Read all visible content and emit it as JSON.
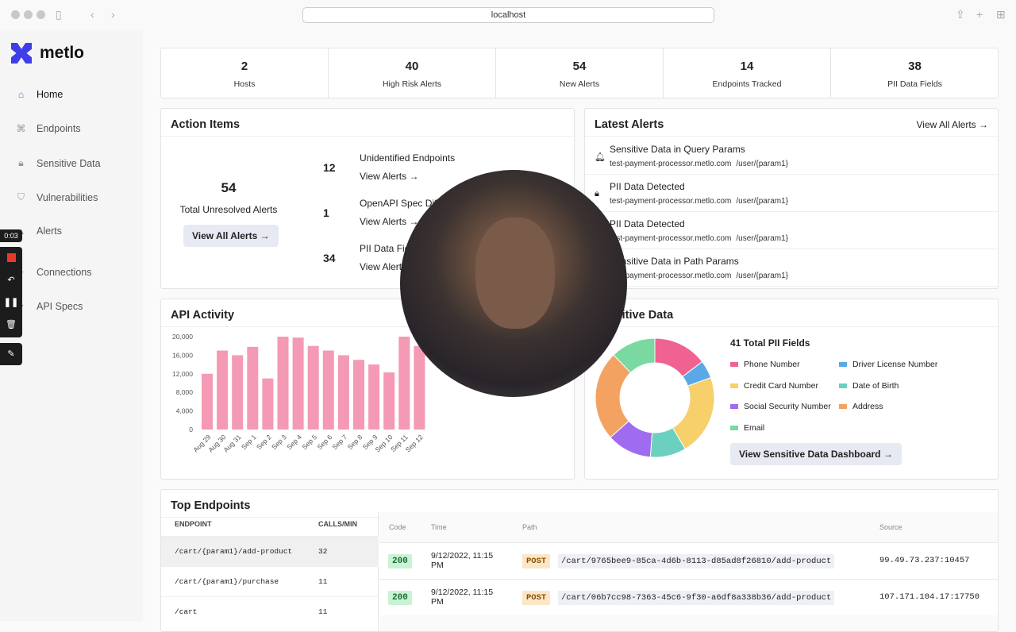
{
  "browser": {
    "url": "localhost"
  },
  "sidebar": {
    "brand": "metlo",
    "items": [
      {
        "label": "Home"
      },
      {
        "label": "Endpoints"
      },
      {
        "label": "Sensitive Data"
      },
      {
        "label": "Vulnerabilities"
      },
      {
        "label": "Alerts"
      },
      {
        "label": "Connections"
      },
      {
        "label": "API Specs"
      }
    ]
  },
  "recorder": {
    "timer": "0:03"
  },
  "stats": [
    {
      "value": "2",
      "label": "Hosts"
    },
    {
      "value": "40",
      "label": "High Risk Alerts"
    },
    {
      "value": "54",
      "label": "New Alerts"
    },
    {
      "value": "14",
      "label": "Endpoints Tracked"
    },
    {
      "value": "38",
      "label": "PII Data Fields"
    }
  ],
  "action_items": {
    "title": "Action Items",
    "total": "54",
    "total_label": "Total Unresolved Alerts",
    "view_all": "View All Alerts →",
    "items": [
      {
        "count": "12",
        "title": "Unidentified Endpoints",
        "link": "View Alerts →"
      },
      {
        "count": "1",
        "title": "OpenAPI Spec Diff",
        "link": "View Alerts →"
      },
      {
        "count": "34",
        "title": "PII Data Fie",
        "link": "View Alerts"
      }
    ]
  },
  "latest_alerts": {
    "title": "Latest Alerts",
    "view_all": "View All Alerts →",
    "items": [
      {
        "title": "Sensitive Data in Query Params",
        "host": "test-payment-processor.metlo.com",
        "path": "/user/{param1}",
        "icon": "bell-icon"
      },
      {
        "title": "PII Data Detected",
        "host": "test-payment-processor.metlo.com",
        "path": "/user/{param1}",
        "icon": "lock-icon"
      },
      {
        "title": "PII Data Detected",
        "host": "test-payment-processor.metlo.com",
        "path": "/user/{param1}",
        "icon": "lock-icon"
      },
      {
        "title": "Sensitive Data in Path Params",
        "host": "test-payment-processor.metlo.com",
        "path": "/user/{param1}",
        "icon": "bell-icon"
      }
    ]
  },
  "api_activity": {
    "title": "API Activity"
  },
  "sensitive": {
    "title": "Sensitive Data",
    "total": "41 Total PII Fields",
    "button": "View Sensitive Data Dashboard →"
  },
  "chart_data": [
    {
      "type": "bar",
      "title": "API Activity",
      "categories": [
        "Aug 29",
        "Aug 30",
        "Aug 31",
        "Sep 1",
        "Sep 2",
        "Sep 3",
        "Sep 4",
        "Sep 5",
        "Sep 6",
        "Sep 7",
        "Sep 8",
        "Sep 9",
        "Sep 10",
        "Sep 11",
        "Sep 12"
      ],
      "values": [
        12000,
        17000,
        16000,
        17800,
        11000,
        20000,
        19800,
        18000,
        17000,
        16000,
        15000,
        14000,
        12300,
        20000,
        18000
      ],
      "yticks": [
        "0",
        "4,000",
        "8,000",
        "12,000",
        "16,000",
        "20,000"
      ],
      "ylim": [
        0,
        20000
      ],
      "color": "#f49ab5"
    },
    {
      "type": "pie",
      "title": "41 Total PII Fields",
      "labels": [
        "Phone Number",
        "Driver License Number",
        "Credit Card Number",
        "Date of Birth",
        "Social Security Number",
        "Address",
        "Email"
      ],
      "values": [
        6,
        2,
        9,
        4,
        5,
        10,
        5
      ],
      "colors": [
        "#f06292",
        "#5aa9e6",
        "#f7cf6b",
        "#6bd0c0",
        "#9f6cf0",
        "#f4a261",
        "#7ad9a0"
      ]
    }
  ],
  "top_endpoints": {
    "title": "Top Endpoints",
    "headers": [
      "ENDPOINT",
      "CALLS/MIN"
    ],
    "rows": [
      {
        "endpoint": "/cart/{param1}/add-product",
        "calls": "32"
      },
      {
        "endpoint": "/cart/{param1}/purchase",
        "calls": "11"
      },
      {
        "endpoint": "/cart",
        "calls": "11"
      }
    ]
  },
  "traces": {
    "headers": [
      "Code",
      "Time",
      "Path",
      "Source"
    ],
    "rows": [
      {
        "code": "200",
        "time": "9/12/2022, 11:15 PM",
        "method": "POST",
        "path": "/cart/9765bee9-85ca-4d6b-8113-d85ad8f26810/add-product",
        "source": "99.49.73.237:10457"
      },
      {
        "code": "200",
        "time": "9/12/2022, 11:15 PM",
        "method": "POST",
        "path": "/cart/06b7cc98-7363-45c6-9f30-a6df8a338b36/add-product",
        "source": "107.171.104.17:17750"
      }
    ]
  }
}
